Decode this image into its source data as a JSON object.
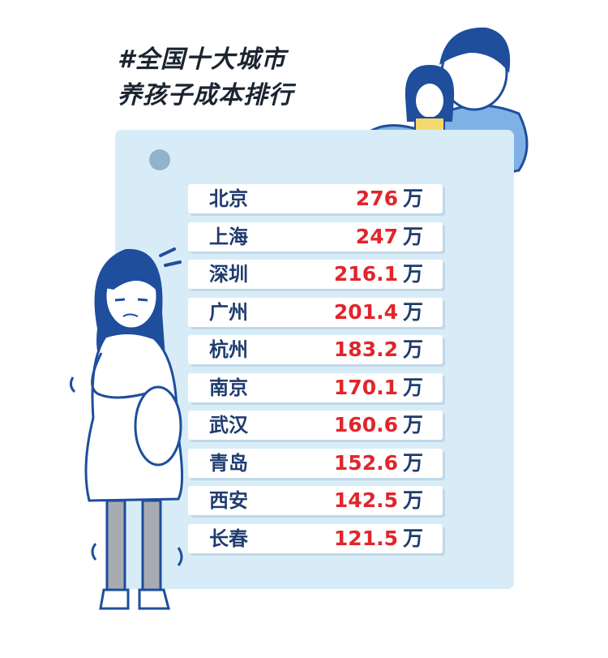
{
  "title": {
    "line1": "#全国十大城市",
    "line2": "养孩子成本排行"
  },
  "ranking": [
    {
      "city": "北京",
      "value": "276",
      "unit": "万"
    },
    {
      "city": "上海",
      "value": "247",
      "unit": "万"
    },
    {
      "city": "深圳",
      "value": "216.1",
      "unit": "万"
    },
    {
      "city": "广州",
      "value": "201.4",
      "unit": "万"
    },
    {
      "city": "杭州",
      "value": "183.2",
      "unit": "万"
    },
    {
      "city": "南京",
      "value": "170.1",
      "unit": "万"
    },
    {
      "city": "武汉",
      "value": "160.6",
      "unit": "万"
    },
    {
      "city": "青岛",
      "value": "152.6",
      "unit": "万"
    },
    {
      "city": "西安",
      "value": "142.5",
      "unit": "万"
    },
    {
      "city": "长春",
      "value": "121.5",
      "unit": "万"
    }
  ],
  "colors": {
    "board": "#d8ecf8",
    "city_text": "#1f3c6e",
    "value_text": "#e0262b",
    "hair": "#1e4e9c"
  },
  "illustrations": [
    "pregnant-woman-illustration",
    "father-and-daughter-illustration"
  ]
}
